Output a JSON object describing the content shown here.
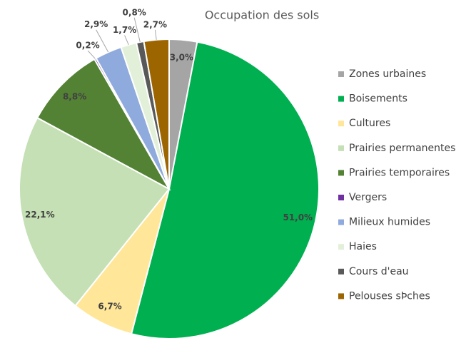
{
  "chart_data": {
    "type": "pie",
    "title": "Occupation des sols",
    "categories": [
      "Zones urbaines",
      "Boisements",
      "Cultures",
      "Prairies permanentes",
      "Prairies temporaires",
      "Vergers",
      "Milieux humides",
      "Haies",
      "Cours d'eau",
      "Pelouses sÞches"
    ],
    "values": [
      3.0,
      51.0,
      6.7,
      22.1,
      8.8,
      0.2,
      2.9,
      1.7,
      0.8,
      2.7
    ],
    "value_labels": [
      "3,0%",
      "51,0%",
      "6,7%",
      "22,1%",
      "8,8%",
      "0,2%",
      "2,9%",
      "1,7%",
      "0,8%",
      "2,7%"
    ],
    "colors": [
      "#a5a5a5",
      "#00b050",
      "#ffe699",
      "#c5e0b4",
      "#548235",
      "#7030a0",
      "#8faadc",
      "#e2f0d9",
      "#595959",
      "#9c6500"
    ],
    "legend": "right"
  }
}
